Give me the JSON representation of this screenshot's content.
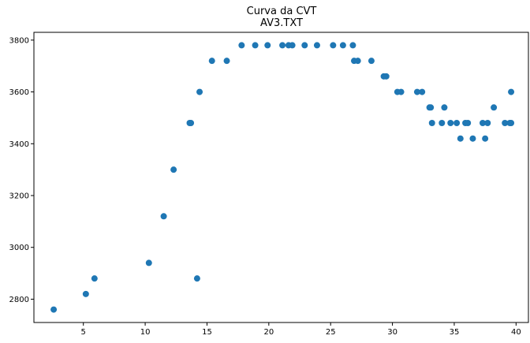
{
  "chart_data": {
    "type": "scatter",
    "title": "Curva da CVT",
    "subtitle": "AV3.TXT",
    "xlabel": "",
    "ylabel": "",
    "xlim": [
      1.0,
      41.0
    ],
    "ylim": [
      2710,
      3830
    ],
    "xticks": [
      5,
      10,
      15,
      20,
      25,
      30,
      35,
      40
    ],
    "yticks": [
      2800,
      3000,
      3200,
      3400,
      3600,
      3800
    ],
    "grid": false,
    "legend": "none",
    "marker_color": "#1f77b4",
    "series": [
      {
        "x": [
          2.6,
          5.2,
          5.9,
          10.3,
          11.5,
          12.3,
          13.6,
          13.7,
          14.2,
          14.4,
          15.4,
          16.6,
          17.8,
          18.9,
          19.9,
          21.1,
          21.6,
          21.9,
          22.9,
          23.9,
          25.2,
          26.0,
          26.8,
          26.9,
          27.2,
          28.3,
          29.3,
          29.5,
          30.4,
          30.7,
          32.0,
          32.4,
          33.0,
          33.1,
          33.2,
          34.0,
          34.2,
          34.7,
          35.2,
          35.5,
          35.9,
          36.1,
          36.5,
          37.3,
          37.5,
          37.7,
          38.2,
          39.1,
          39.5,
          39.6,
          39.6
        ],
        "y": [
          2760,
          2820,
          2880,
          2940,
          3120,
          3300,
          3480,
          3480,
          2880,
          3600,
          3720,
          3720,
          3780,
          3780,
          3780,
          3780,
          3780,
          3780,
          3780,
          3780,
          3780,
          3780,
          3780,
          3720,
          3720,
          3720,
          3660,
          3660,
          3600,
          3600,
          3600,
          3600,
          3540,
          3540,
          3480,
          3480,
          3540,
          3480,
          3480,
          3420,
          3480,
          3480,
          3420,
          3480,
          3420,
          3480,
          3540,
          3480,
          3480,
          3480,
          3600
        ]
      }
    ]
  }
}
